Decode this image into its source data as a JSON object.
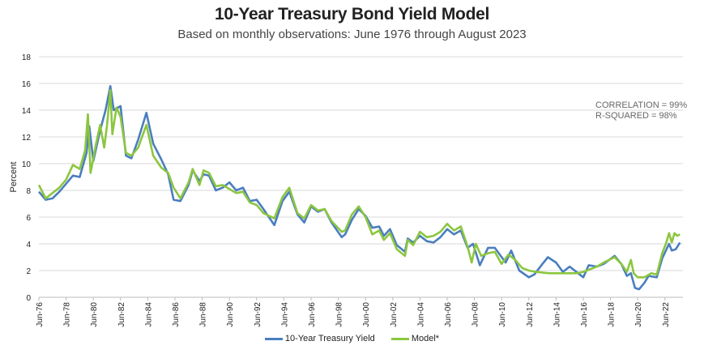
{
  "chart_data": {
    "type": "line",
    "title": "10-Year Treasury Bond Yield Model",
    "subtitle": "Based on monthly observations: June 1976 through August 2023",
    "ylabel": "Percent",
    "ylim": [
      0,
      18
    ],
    "yticks": [
      0,
      2,
      4,
      6,
      8,
      10,
      12,
      14,
      16,
      18
    ],
    "xticks": [
      "Jun-76",
      "Jun-78",
      "Jun-80",
      "Jun-82",
      "Jun-84",
      "Jun-86",
      "Jun-88",
      "Jun-90",
      "Jun-92",
      "Jun-94",
      "Jun-96",
      "Jun-98",
      "Jun-00",
      "Jun-02",
      "Jun-04",
      "Jun-06",
      "Jun-08",
      "Jun-10",
      "Jun-12",
      "Jun-14",
      "Jun-16",
      "Jun-18",
      "Jun-20",
      "Jun-22"
    ],
    "grid": true,
    "legend_position": "bottom",
    "annotations": [
      "CORRELATION = 99%",
      "R-SQUARED = 98%"
    ],
    "series": [
      {
        "name": "10-Year Treasury Yield",
        "color": "#4a7ebf",
        "x": [
          1976.5,
          1977.0,
          1977.5,
          1978.0,
          1978.5,
          1979.0,
          1979.5,
          1980.0,
          1980.2,
          1980.5,
          1981.0,
          1981.4,
          1981.75,
          1982.0,
          1982.5,
          1982.9,
          1983.3,
          1983.8,
          1984.4,
          1984.9,
          1985.5,
          1986.0,
          1986.4,
          1986.9,
          1987.5,
          1987.8,
          1988.3,
          1988.6,
          1989.0,
          1989.5,
          1990.0,
          1990.5,
          1991.0,
          1991.5,
          1992.0,
          1992.5,
          1993.0,
          1993.8,
          1994.4,
          1994.9,
          1995.5,
          1996.0,
          1996.5,
          1997.0,
          1997.5,
          1998.0,
          1998.75,
          1999.0,
          1999.5,
          2000.0,
          2000.5,
          2001.0,
          2001.5,
          2001.85,
          2002.3,
          2002.8,
          2003.4,
          2003.6,
          2004.0,
          2004.5,
          2005.0,
          2005.5,
          2006.0,
          2006.5,
          2007.0,
          2007.5,
          2008.0,
          2008.4,
          2008.9,
          2009.5,
          2010.0,
          2010.5,
          2010.8,
          2011.2,
          2011.8,
          2012.5,
          2012.9,
          2013.5,
          2013.9,
          2014.5,
          2015.0,
          2015.5,
          2016.5,
          2016.9,
          2017.5,
          2018.0,
          2018.8,
          2019.3,
          2019.7,
          2020.0,
          2020.3,
          2020.6,
          2021.0,
          2021.3,
          2021.9,
          2022.3,
          2022.8,
          2023.0,
          2023.3,
          2023.6
        ],
        "values": [
          7.9,
          7.3,
          7.4,
          7.9,
          8.5,
          9.1,
          9.0,
          10.8,
          12.8,
          10.2,
          12.5,
          14.0,
          15.8,
          14.0,
          14.3,
          10.6,
          10.4,
          11.8,
          13.8,
          11.5,
          10.3,
          9.2,
          7.3,
          7.2,
          8.4,
          9.5,
          8.7,
          9.2,
          9.1,
          8.0,
          8.2,
          8.6,
          8.0,
          8.2,
          7.2,
          7.3,
          6.6,
          5.4,
          7.2,
          7.9,
          6.2,
          5.6,
          6.8,
          6.4,
          6.6,
          5.6,
          4.5,
          4.7,
          5.8,
          6.6,
          6.1,
          5.2,
          5.3,
          4.6,
          5.1,
          3.9,
          3.4,
          4.4,
          4.1,
          4.6,
          4.2,
          4.1,
          4.5,
          5.1,
          4.7,
          5.0,
          3.7,
          4.0,
          2.4,
          3.7,
          3.7,
          3.0,
          2.6,
          3.5,
          2.0,
          1.5,
          1.7,
          2.5,
          3.0,
          2.6,
          1.9,
          2.3,
          1.5,
          2.4,
          2.3,
          2.5,
          3.1,
          2.5,
          1.6,
          1.8,
          0.7,
          0.6,
          1.1,
          1.6,
          1.5,
          2.9,
          4.0,
          3.5,
          3.6,
          4.1
        ]
      },
      {
        "name": "Model*",
        "color": "#8cc63f",
        "x": [
          1976.5,
          1977.0,
          1977.5,
          1978.0,
          1978.5,
          1979.0,
          1979.5,
          1979.9,
          1980.1,
          1980.3,
          1980.7,
          1981.0,
          1981.3,
          1981.5,
          1981.75,
          1981.9,
          1982.2,
          1982.5,
          1982.9,
          1983.3,
          1983.8,
          1984.4,
          1984.9,
          1985.5,
          1986.0,
          1986.4,
          1986.9,
          1987.5,
          1987.8,
          1988.3,
          1988.6,
          1989.0,
          1989.5,
          1990.0,
          1990.5,
          1991.0,
          1991.5,
          1992.0,
          1992.5,
          1993.0,
          1993.8,
          1994.4,
          1994.9,
          1995.5,
          1996.0,
          1996.5,
          1997.0,
          1997.5,
          1998.0,
          1998.75,
          1999.0,
          1999.5,
          2000.0,
          2000.5,
          2001.0,
          2001.5,
          2001.85,
          2002.3,
          2002.8,
          2003.4,
          2003.6,
          2004.0,
          2004.5,
          2005.0,
          2005.5,
          2006.0,
          2006.5,
          2007.0,
          2007.5,
          2008.0,
          2008.3,
          2008.6,
          2009.0,
          2009.5,
          2010.0,
          2010.5,
          2011.0,
          2011.5,
          2012.0,
          2012.5,
          2013.0,
          2014.0,
          2015.0,
          2016.0,
          2016.5,
          2017.0,
          2017.5,
          2018.0,
          2018.8,
          2019.3,
          2019.7,
          2020.0,
          2020.2,
          2020.5,
          2021.0,
          2021.5,
          2021.9,
          2022.3,
          2022.6,
          2022.8,
          2023.0,
          2023.2,
          2023.4,
          2023.6
        ],
        "values": [
          8.4,
          7.4,
          7.8,
          8.2,
          8.8,
          9.9,
          9.6,
          11.0,
          13.7,
          9.3,
          11.5,
          12.9,
          11.2,
          12.8,
          15.5,
          12.2,
          14.2,
          13.5,
          10.8,
          10.6,
          11.2,
          12.9,
          10.6,
          9.7,
          9.3,
          8.2,
          7.4,
          8.6,
          9.6,
          8.4,
          9.5,
          9.3,
          8.3,
          8.4,
          8.1,
          7.8,
          7.9,
          7.1,
          6.9,
          6.3,
          5.9,
          7.5,
          8.2,
          6.3,
          5.9,
          6.9,
          6.5,
          6.6,
          5.7,
          4.9,
          5.0,
          6.2,
          6.8,
          6.0,
          4.7,
          5.0,
          4.3,
          4.8,
          3.6,
          3.1,
          4.3,
          3.9,
          4.9,
          4.5,
          4.6,
          4.9,
          5.5,
          5.0,
          5.3,
          3.8,
          2.6,
          4.0,
          3.1,
          3.3,
          3.4,
          2.5,
          3.2,
          2.8,
          2.2,
          2.0,
          1.9,
          1.8,
          1.8,
          1.8,
          1.9,
          2.1,
          2.3,
          2.6,
          3.0,
          2.5,
          1.9,
          2.8,
          1.8,
          1.5,
          1.5,
          1.8,
          1.7,
          3.3,
          4.1,
          4.8,
          4.1,
          4.8,
          4.6,
          4.7
        ]
      }
    ]
  }
}
